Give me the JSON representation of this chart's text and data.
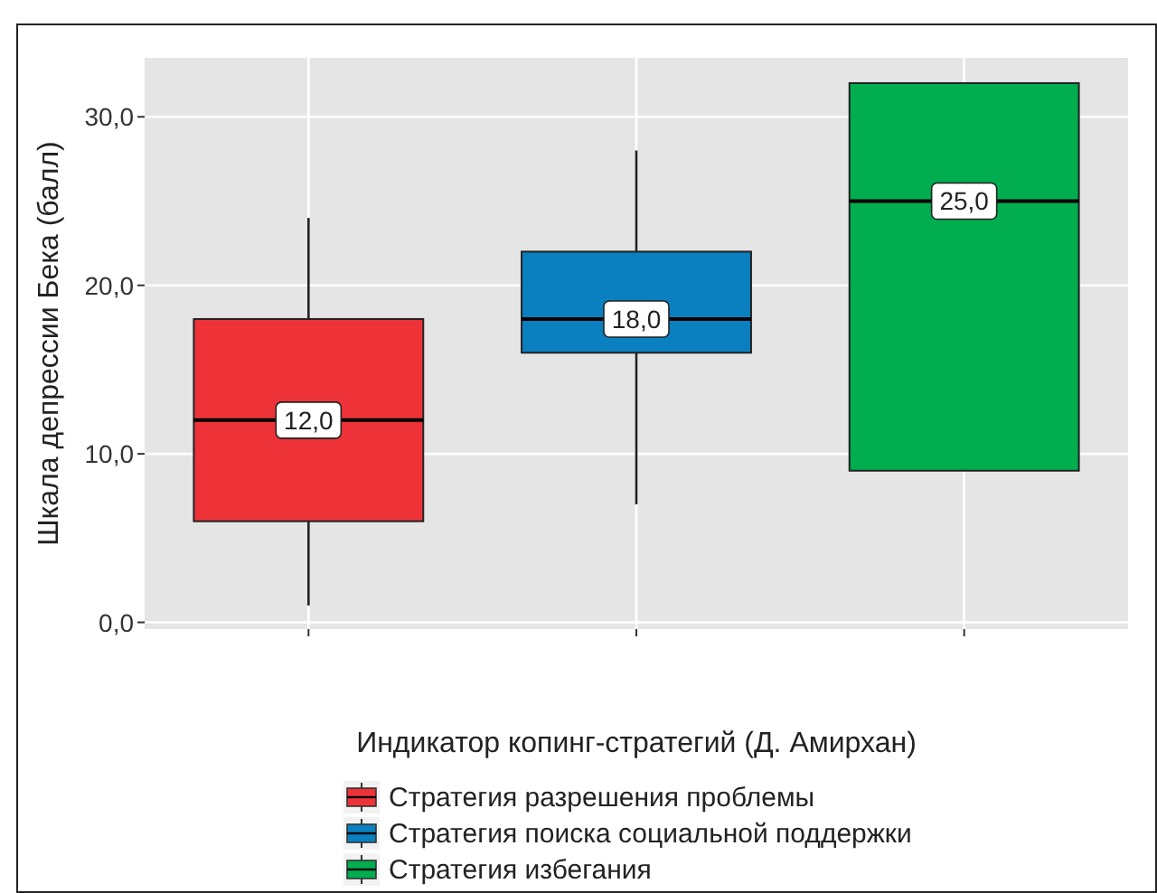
{
  "chart_data": {
    "type": "box",
    "xlabel": "Индикатор копинг-стратегий (Д. Амирхан)",
    "ylabel": "Шкала депрессии Бека (балл)",
    "categories": [
      null,
      null,
      null
    ],
    "ylim": [
      -0.4,
      33.5
    ],
    "yticks": [
      {
        "value": 0,
        "label": "0,0"
      },
      {
        "value": 10,
        "label": "10,0"
      },
      {
        "value": 20,
        "label": "20,0"
      },
      {
        "value": 30,
        "label": "30,0"
      }
    ],
    "grid": true,
    "legend": "bottom",
    "series": [
      {
        "name": "Стратегия разрешения проблемы",
        "color": "#ee3338",
        "boxes": [
          {
            "low": 1,
            "q1": 6,
            "median": 12,
            "q3": 18,
            "high": 24
          },
          null,
          null
        ],
        "value_labels": [
          "12,0",
          null,
          null
        ]
      },
      {
        "name": "Стратегия поиска социальной поддержки",
        "color": "#0a80c0",
        "boxes": [
          null,
          {
            "low": 7,
            "q1": 16,
            "median": 18,
            "q3": 22,
            "high": 28
          },
          null
        ],
        "value_labels": [
          null,
          "18,0",
          null
        ]
      },
      {
        "name": "Стратегия избегания",
        "color": "#00ad4f",
        "boxes": [
          null,
          null,
          {
            "low": 9,
            "q1": 9,
            "median": 25,
            "q3": 32,
            "high": 32
          }
        ],
        "value_labels": [
          null,
          null,
          "25,0"
        ]
      }
    ]
  }
}
